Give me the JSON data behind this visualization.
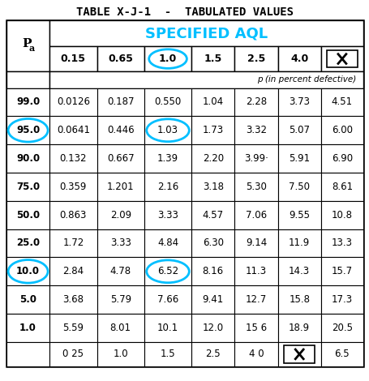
{
  "title": "TABLE X-J-1  -  TABULATED VALUES",
  "header_aql": "SPECIFIED AQL",
  "header_aql_color": "#00BFFF",
  "col_header_pa": "P",
  "col_header_pa_sub": "a",
  "col_headers": [
    "0.15",
    "0.65",
    "1.0",
    "1.5",
    "2.5",
    "4.0",
    "X"
  ],
  "sub_header": "p (in percent defective)",
  "rows": [
    [
      "99.0",
      "0.0126",
      "0.187",
      "0.550",
      "1.04",
      "2.28",
      "3.73",
      "4.51"
    ],
    [
      "95.0",
      "0.0641",
      "0.446",
      "1.03",
      "1.73",
      "3.32",
      "5.07",
      "6.00"
    ],
    [
      "90.0",
      "0.132",
      "0.667",
      "1.39",
      "2.20",
      "3.99·",
      "5.91",
      "6.90"
    ],
    [
      "75.0",
      "0.359",
      "1.201",
      "2.16",
      "3.18",
      "5.30",
      "7.50",
      "8.61"
    ],
    [
      "50.0",
      "0.863",
      "2.09",
      "3.33",
      "4.57",
      "7.06",
      "9.55",
      "10.8"
    ],
    [
      "25.0",
      "1.72",
      "3.33",
      "4.84",
      "6.30",
      "9.14",
      "11.9",
      "13.3"
    ],
    [
      "10.0",
      "2.84",
      "4.78",
      "6.52",
      "8.16",
      "11.3",
      "14.3",
      "15.7"
    ],
    [
      "5.0",
      "3.68",
      "5.79",
      "7.66",
      "9.41",
      "12.7",
      "15.8",
      "17.3"
    ],
    [
      "1.0",
      "5.59",
      "8.01",
      "10.1",
      "12.0",
      "15 6",
      "18.9",
      "20.5"
    ]
  ],
  "bottom_row": [
    "",
    "0 25",
    "1.0",
    "1.5",
    "2.5",
    "4 0",
    "X",
    "6.5"
  ],
  "circled_cells": [
    [
      1,
      0
    ],
    [
      1,
      3
    ],
    [
      6,
      0
    ],
    [
      6,
      3
    ]
  ],
  "circle_header_col": 3,
  "bg_color": "#ffffff",
  "text_color": "#000000",
  "aql_color": "#00BFFF",
  "title_fontsize": 10,
  "data_fontsize": 8,
  "header_fontsize": 9
}
